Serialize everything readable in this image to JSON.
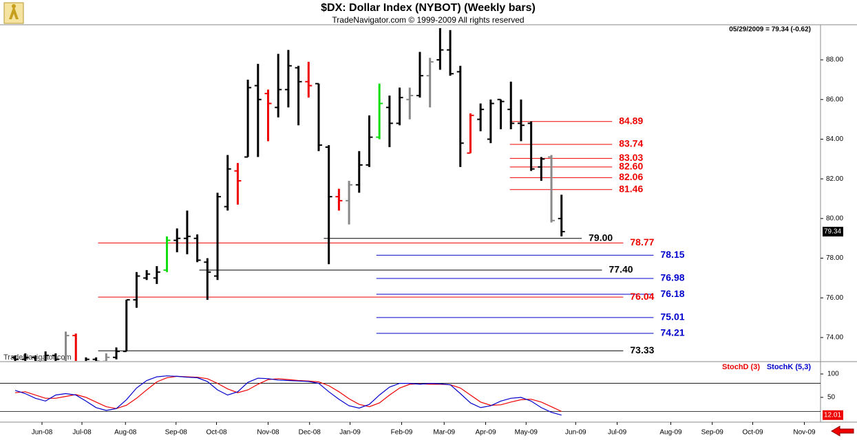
{
  "chart_data": [
    {
      "type": "ohlc",
      "title": "$DX:  Dollar Index (NYBOT)  (Weekly bars)",
      "subtitle": "TradeNavigator.com © 1999-2009 All rights reserved",
      "info": "05/29/2009 = 79.34 (-0.62)",
      "watermark": "TradeNavigator.com",
      "x": [
        0,
        1,
        2,
        3,
        4,
        5,
        6,
        7,
        8,
        9,
        10,
        11,
        12,
        13,
        14,
        15,
        16,
        17,
        18,
        19,
        20,
        21,
        22,
        23,
        24,
        25,
        26,
        27,
        28,
        29,
        30,
        31,
        32,
        33,
        34,
        35,
        36,
        37,
        38,
        39,
        40,
        41,
        42,
        43,
        44,
        45,
        46,
        47,
        48,
        49,
        50,
        51,
        52,
        53,
        54
      ],
      "open": [
        73.0,
        72.9,
        73.0,
        72.8,
        73.1,
        72.9,
        74.1,
        72.6,
        72.9,
        72.8,
        73.0,
        73.3,
        75.9,
        77.0,
        77.0,
        77.4,
        78.9,
        79.0,
        79.0,
        77.8,
        77.1,
        80.6,
        82.4,
        83.1,
        86.7,
        86.3,
        85.6,
        86.5,
        87.6,
        86.9,
        86.8,
        83.6,
        81.1,
        80.9,
        81.7,
        82.7,
        84.1,
        85.6,
        84.8,
        86.0,
        86.2,
        87.2,
        88.0,
        88.5,
        87.4,
        83.3,
        85.0,
        84.0,
        86.0,
        85.5,
        84.8,
        84.8,
        82.6,
        83.1,
        80.0
      ],
      "high": [
        73.1,
        73.2,
        73.1,
        73.3,
        73.2,
        74.3,
        74.2,
        73.0,
        73.0,
        73.2,
        73.5,
        75.9,
        77.3,
        77.4,
        77.6,
        79.1,
        79.5,
        80.4,
        79.2,
        78.0,
        81.3,
        83.2,
        82.8,
        87.0,
        87.8,
        86.5,
        88.3,
        88.5,
        87.7,
        87.9,
        86.8,
        83.7,
        81.5,
        81.9,
        83.4,
        85.2,
        86.8,
        86.2,
        86.6,
        86.6,
        88.4,
        88.1,
        89.6,
        89.5,
        87.7,
        85.3,
        85.8,
        86.0,
        86.0,
        86.9,
        86.0,
        84.9,
        83.1,
        83.2,
        81.2
      ],
      "low": [
        72.6,
        72.7,
        72.6,
        72.5,
        72.7,
        72.7,
        72.5,
        72.4,
        72.6,
        72.5,
        72.9,
        73.3,
        75.5,
        76.9,
        76.7,
        77.3,
        78.3,
        78.2,
        77.8,
        75.9,
        76.9,
        80.4,
        80.7,
        83.1,
        83.1,
        83.9,
        85.1,
        85.6,
        84.7,
        86.1,
        83.4,
        77.7,
        80.4,
        79.7,
        81.3,
        82.6,
        84.0,
        83.6,
        84.7,
        85.0,
        86.1,
        85.6,
        87.5,
        87.2,
        82.6,
        83.3,
        84.4,
        83.8,
        84.5,
        84.5,
        83.9,
        82.4,
        81.9,
        79.8,
        79.1
      ],
      "close": [
        72.9,
        73.0,
        72.8,
        73.1,
        72.9,
        74.1,
        72.6,
        72.9,
        72.8,
        73.0,
        73.3,
        75.9,
        77.1,
        77.2,
        77.3,
        78.9,
        79.0,
        79.1,
        77.9,
        77.3,
        81.1,
        82.5,
        81.9,
        86.6,
        86.0,
        85.8,
        86.5,
        87.7,
        86.9,
        86.7,
        83.7,
        81.1,
        80.9,
        81.7,
        82.7,
        84.1,
        85.8,
        84.8,
        86.1,
        86.2,
        87.2,
        87.9,
        88.5,
        87.3,
        83.8,
        85.2,
        85.5,
        85.8,
        85.9,
        84.8,
        84.7,
        82.5,
        83.0,
        79.9,
        79.34
      ],
      "colors": [
        "#000",
        "#000",
        "#000",
        "#000",
        "#000",
        "#888",
        "#e00",
        "#000",
        "#000",
        "#888",
        "#000",
        "#000",
        "#000",
        "#000",
        "#000",
        "#1d1",
        "#000",
        "#000",
        "#000",
        "#000",
        "#000",
        "#000",
        "#e00",
        "#000",
        "#000",
        "#e00",
        "#000",
        "#000",
        "#000",
        "#e00",
        "#000",
        "#000",
        "#e00",
        "#888",
        "#000",
        "#000",
        "#1d1",
        "#000",
        "#000",
        "#888",
        "#000",
        "#888",
        "#000",
        "#000",
        "#000",
        "#e00",
        "#000",
        "#000",
        "#000",
        "#000",
        "#000",
        "#000",
        "#000",
        "#888",
        "#000"
      ],
      "xlim": [
        -1.5,
        79.6
      ],
      "xticks": [
        {
          "value": 2.65,
          "label": "Jun-08"
        },
        {
          "value": 6.6,
          "label": "Jul-08"
        },
        {
          "value": 10.9,
          "label": "Aug-08"
        },
        {
          "value": 15.9,
          "label": "Sep-08"
        },
        {
          "value": 19.9,
          "label": "Oct-08"
        },
        {
          "value": 25.0,
          "label": "Nov-08"
        },
        {
          "value": 29.1,
          "label": "Dec-08"
        },
        {
          "value": 33.1,
          "label": "Jan-09"
        },
        {
          "value": 38.2,
          "label": "Feb-09"
        },
        {
          "value": 42.4,
          "label": "Mar-09"
        },
        {
          "value": 46.5,
          "label": "Apr-09"
        },
        {
          "value": 50.5,
          "label": "May-09"
        },
        {
          "value": 55.4,
          "label": "Jun-09"
        },
        {
          "value": 59.5,
          "label": "Jul-09"
        },
        {
          "value": 64.8,
          "label": "Aug-09"
        },
        {
          "value": 68.9,
          "label": "Sep-09"
        },
        {
          "value": 72.9,
          "label": "Oct-09"
        },
        {
          "value": 78.0,
          "label": "Nov-09"
        }
      ],
      "ylim": [
        72.82,
        89.7
      ],
      "yticks": [
        {
          "value": 74,
          "label": "74.00"
        },
        {
          "value": 76,
          "label": "76.00"
        },
        {
          "value": 78,
          "label": "78.00"
        },
        {
          "value": 80,
          "label": "80.00"
        },
        {
          "value": 82,
          "label": "82.00"
        },
        {
          "value": 84,
          "label": "84.00"
        },
        {
          "value": 86,
          "label": "86.00"
        },
        {
          "value": 88,
          "label": "88.00"
        }
      ],
      "levels": [
        {
          "value": 84.89,
          "label": "84.89",
          "color": "#e00",
          "x_range": [
            48.9,
            59.0
          ]
        },
        {
          "value": 83.74,
          "label": "83.74",
          "color": "#e00",
          "x_range": [
            48.9,
            59.0
          ]
        },
        {
          "value": 83.03,
          "label": "83.03",
          "color": "#e00",
          "x_range": [
            48.9,
            59.0
          ]
        },
        {
          "value": 82.6,
          "label": "82.60",
          "color": "#e00",
          "x_range": [
            48.9,
            59.0
          ]
        },
        {
          "value": 82.06,
          "label": "82.06",
          "color": "#e00",
          "x_range": [
            48.9,
            59.0
          ]
        },
        {
          "value": 81.46,
          "label": "81.46",
          "color": "#e00",
          "x_range": [
            48.9,
            59.0
          ]
        },
        {
          "value": 79.0,
          "label": "79.00",
          "color": "#000",
          "x_range": [
            30.5,
            56.0
          ]
        },
        {
          "value": 78.77,
          "label": "78.77",
          "color": "#e00",
          "x_range": [
            8.2,
            60.1
          ]
        },
        {
          "value": 78.15,
          "label": "78.15",
          "color": "#00c",
          "x_range": [
            35.7,
            63.1
          ]
        },
        {
          "value": 77.4,
          "label": "77.40",
          "color": "#000",
          "x_range": [
            18.2,
            58.0
          ]
        },
        {
          "value": 76.98,
          "label": "76.98",
          "color": "#00c",
          "x_range": [
            35.7,
            63.1
          ]
        },
        {
          "value": 76.18,
          "label": "76.18",
          "color": "#00c",
          "x_range": [
            35.7,
            63.1
          ]
        },
        {
          "value": 76.04,
          "label": "76.04",
          "color": "#e00",
          "x_range": [
            8.2,
            60.1
          ]
        },
        {
          "value": 75.01,
          "label": "75.01",
          "color": "#00c",
          "x_range": [
            35.7,
            63.1
          ]
        },
        {
          "value": 74.21,
          "label": "74.21",
          "color": "#00c",
          "x_range": [
            35.7,
            63.1
          ]
        },
        {
          "value": 73.33,
          "label": "73.33",
          "color": "#000",
          "x_range": [
            8.2,
            60.1
          ]
        }
      ]
    },
    {
      "type": "line",
      "x": [
        0,
        1,
        2,
        3,
        4,
        5,
        6,
        7,
        8,
        9,
        10,
        11,
        12,
        13,
        14,
        15,
        16,
        17,
        18,
        19,
        20,
        21,
        22,
        23,
        24,
        25,
        26,
        27,
        28,
        29,
        30,
        31,
        32,
        33,
        34,
        35,
        36,
        37,
        38,
        39,
        40,
        41,
        42,
        43,
        44,
        45,
        46,
        47,
        48,
        49,
        50,
        51,
        52,
        53,
        54
      ],
      "series": [
        {
          "name": "StochD (3)",
          "color": "#e00",
          "values": [
            60,
            62,
            55,
            48,
            48,
            52,
            56,
            50,
            40,
            30,
            26,
            33,
            48,
            66,
            83,
            92,
            95,
            94,
            93,
            90,
            80,
            68,
            60,
            66,
            78,
            88,
            90,
            88,
            86,
            85,
            83,
            75,
            62,
            47,
            35,
            30,
            38,
            55,
            70,
            78,
            79,
            78,
            78,
            77,
            70,
            55,
            40,
            33,
            34,
            40,
            45,
            46,
            40,
            30,
            20
          ]
        },
        {
          "name": "StochK (5,3)",
          "color": "#00c",
          "values": [
            65,
            58,
            48,
            42,
            55,
            58,
            55,
            42,
            28,
            22,
            26,
            45,
            70,
            86,
            94,
            96,
            95,
            93,
            92,
            84,
            66,
            55,
            62,
            82,
            91,
            90,
            87,
            86,
            85,
            84,
            80,
            62,
            46,
            32,
            27,
            35,
            55,
            72,
            80,
            80,
            78,
            80,
            79,
            77,
            58,
            38,
            28,
            32,
            42,
            48,
            50,
            42,
            28,
            18,
            12.01
          ]
        }
      ],
      "ylim": [
        -3,
        123.5
      ],
      "yticks": [
        50,
        100
      ],
      "ref_lines": [
        20,
        80
      ]
    }
  ]
}
